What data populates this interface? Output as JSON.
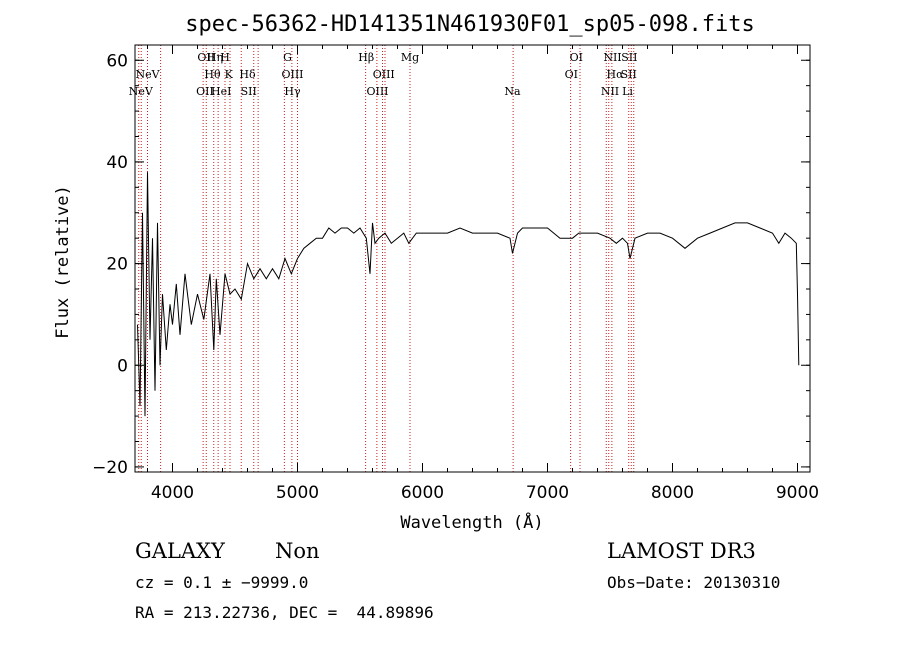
{
  "chart_data": {
    "type": "line",
    "title": "spec-56362-HD141351N461930F01_sp05-098.fits",
    "xlabel": "Wavelength (Å)",
    "ylabel": "Flux (relative)",
    "xlim": [
      3700,
      9100
    ],
    "ylim": [
      -21,
      63
    ],
    "xticks": [
      4000,
      5000,
      6000,
      7000,
      8000,
      9000
    ],
    "yticks": [
      -20,
      0,
      20,
      40,
      60
    ],
    "series": [
      {
        "name": "flux",
        "x": [
          3720,
          3740,
          3760,
          3780,
          3800,
          3820,
          3840,
          3860,
          3880,
          3900,
          3920,
          3950,
          3980,
          4000,
          4030,
          4060,
          4100,
          4150,
          4200,
          4250,
          4300,
          4330,
          4350,
          4380,
          4420,
          4460,
          4500,
          4550,
          4600,
          4650,
          4700,
          4750,
          4800,
          4850,
          4900,
          4950,
          5000,
          5050,
          5100,
          5150,
          5200,
          5250,
          5300,
          5350,
          5400,
          5450,
          5500,
          5550,
          5580,
          5600,
          5620,
          5650,
          5700,
          5750,
          5800,
          5850,
          5890,
          5950,
          6000,
          6100,
          6200,
          6300,
          6400,
          6500,
          6600,
          6700,
          6720,
          6760,
          6800,
          6900,
          7000,
          7100,
          7200,
          7250,
          7300,
          7400,
          7500,
          7550,
          7600,
          7640,
          7660,
          7700,
          7800,
          7900,
          8000,
          8100,
          8200,
          8300,
          8400,
          8500,
          8600,
          8700,
          8800,
          8850,
          8900,
          8950,
          8990,
          9000,
          9010
        ],
        "y": [
          8,
          -8,
          30,
          -10,
          38,
          5,
          25,
          -5,
          28,
          0,
          14,
          3,
          12,
          8,
          16,
          6,
          18,
          8,
          14,
          9,
          18,
          3,
          17,
          6,
          18,
          14,
          15,
          13,
          20,
          17,
          19,
          17,
          19,
          17,
          21,
          18,
          21,
          23,
          24,
          25,
          25,
          27,
          26,
          27,
          27,
          26,
          27,
          25,
          18,
          28,
          24,
          25,
          26,
          24,
          25,
          26,
          24,
          26,
          26,
          26,
          26,
          27,
          26,
          26,
          26,
          25,
          22,
          26,
          27,
          27,
          27,
          25,
          25,
          26,
          26,
          26,
          25,
          24,
          25,
          24,
          21,
          25,
          26,
          26,
          25,
          23,
          25,
          26,
          27,
          28,
          28,
          27,
          26,
          24,
          26,
          25,
          24,
          14,
          0
        ]
      }
    ],
    "emission_lines": [
      {
        "label": "NeV",
        "x": 3746,
        "row": 3
      },
      {
        "label": "NeV",
        "x": 3800,
        "row": 2
      },
      {
        "label": "OII",
        "x": 4270,
        "row": 1
      },
      {
        "label": "Hη",
        "x": 4340,
        "row": 1
      },
      {
        "label": "H",
        "x": 4420,
        "row": 1
      },
      {
        "label": "Hθ",
        "x": 4320,
        "row": 2
      },
      {
        "label": "K",
        "x": 4450,
        "row": 2
      },
      {
        "label": "Hδ",
        "x": 4600,
        "row": 2
      },
      {
        "label": "OII",
        "x": 4260,
        "row": 3
      },
      {
        "label": "HeI",
        "x": 4390,
        "row": 3
      },
      {
        "label": "SII",
        "x": 4610,
        "row": 3
      },
      {
        "label": "G",
        "x": 4920,
        "row": 1
      },
      {
        "label": "OIII",
        "x": 4960,
        "row": 2
      },
      {
        "label": "Hγ",
        "x": 4960,
        "row": 3
      },
      {
        "label": "Hβ",
        "x": 5550,
        "row": 1
      },
      {
        "label": "OIII",
        "x": 5690,
        "row": 2
      },
      {
        "label": "OIII",
        "x": 5640,
        "row": 3
      },
      {
        "label": "Mg",
        "x": 5900,
        "row": 1
      },
      {
        "label": "Na",
        "x": 6720,
        "row": 3
      },
      {
        "label": "OI",
        "x": 7230,
        "row": 1
      },
      {
        "label": "OI",
        "x": 7190,
        "row": 2
      },
      {
        "label": "NII",
        "x": 7520,
        "row": 1
      },
      {
        "label": "SII",
        "x": 7655,
        "row": 1
      },
      {
        "label": "Hα",
        "x": 7540,
        "row": 2
      },
      {
        "label": "SII",
        "x": 7650,
        "row": 2
      },
      {
        "label": "NII",
        "x": 7500,
        "row": 3
      },
      {
        "label": "Li",
        "x": 7640,
        "row": 3
      }
    ],
    "marker_lines_x": [
      3730,
      3750,
      3800,
      3905,
      4245,
      4270,
      4330,
      4365,
      4420,
      4460,
      4550,
      4650,
      4685,
      4895,
      4955,
      5000,
      5545,
      5635,
      5680,
      5700,
      5900,
      6725,
      7185,
      7260,
      7470,
      7490,
      7515,
      7650,
      7670,
      7690
    ],
    "colors": {
      "marker": "#c02020",
      "spectrum": "#000000",
      "axis": "#000000"
    }
  },
  "info": {
    "class": "GALAXY",
    "subclass": "Non",
    "survey": "LAMOST DR3",
    "cz": "cz = 0.1 ± −9999.0",
    "obs_date": "Obs−Date: 20130310",
    "coords": "RA = 213.22736, DEC =  44.89896"
  }
}
